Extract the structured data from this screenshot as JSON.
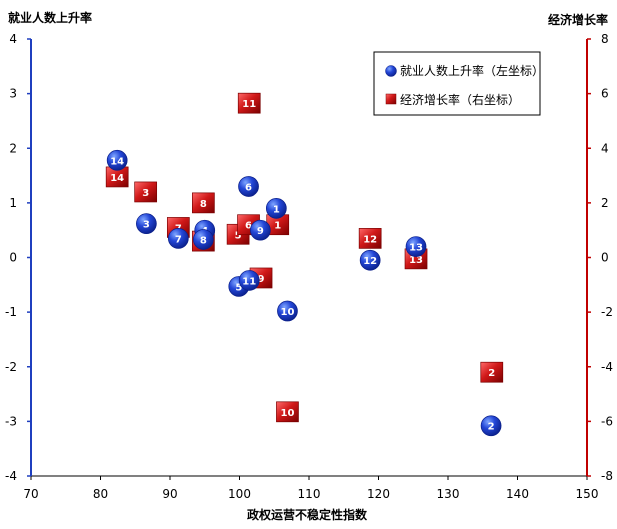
{
  "chart_data": {
    "type": "scatter",
    "title": "",
    "xlabel": "政权运营不稳定性指数",
    "ylabel_left": "就业人数上升率",
    "ylabel_right": "经济增长率",
    "xlim": [
      70,
      150
    ],
    "xticks": [
      "70",
      "80",
      "90",
      "100",
      "110",
      "120",
      "130",
      "140",
      "150"
    ],
    "ylim_left": [
      -4,
      4
    ],
    "yticks_left": [
      "-4",
      "-3",
      "-2",
      "-1",
      "0",
      "1",
      "2",
      "3",
      "4"
    ],
    "ylim_right": [
      -8,
      8
    ],
    "yticks_right": [
      "-8",
      "-6",
      "-4",
      "-2",
      "0",
      "2",
      "4",
      "6",
      "8"
    ],
    "grid": false,
    "legend_position": "top-right",
    "colors": {
      "left_axis": "#1f3fbf",
      "right_axis": "#c00000",
      "circle": "#1133cc",
      "square": "#cc1111"
    },
    "series": [
      {
        "name": "就业人数上升率（左坐标）",
        "axis": "left",
        "marker": "circle",
        "points": [
          {
            "label": "1",
            "x": 105.3,
            "y": 0.9
          },
          {
            "label": "2",
            "x": 136.2,
            "y": -3.08
          },
          {
            "label": "3",
            "x": 86.6,
            "y": 0.62
          },
          {
            "label": "4",
            "x": 95.0,
            "y": 0.5
          },
          {
            "label": "5",
            "x": 99.9,
            "y": -0.53
          },
          {
            "label": "6",
            "x": 101.3,
            "y": 1.3
          },
          {
            "label": "7",
            "x": 91.2,
            "y": 0.35
          },
          {
            "label": "8",
            "x": 94.8,
            "y": 0.33
          },
          {
            "label": "9",
            "x": 103.0,
            "y": 0.5
          },
          {
            "label": "10",
            "x": 106.9,
            "y": -0.98
          },
          {
            "label": "11",
            "x": 101.4,
            "y": -0.42
          },
          {
            "label": "12",
            "x": 118.8,
            "y": -0.05
          },
          {
            "label": "13",
            "x": 125.4,
            "y": 0.2
          },
          {
            "label": "14",
            "x": 82.4,
            "y": 1.78
          }
        ]
      },
      {
        "name": "经济增长率（右坐标）",
        "axis": "right",
        "marker": "square",
        "points": [
          {
            "label": "1",
            "x": 105.5,
            "y": 1.2
          },
          {
            "label": "2",
            "x": 136.3,
            "y": -4.2
          },
          {
            "label": "3",
            "x": 86.5,
            "y": 2.4
          },
          {
            "label": "4",
            "x": 94.8,
            "y": 0.6
          },
          {
            "label": "5",
            "x": 99.8,
            "y": 0.85
          },
          {
            "label": "6",
            "x": 101.3,
            "y": 1.2
          },
          {
            "label": "7",
            "x": 91.2,
            "y": 1.1
          },
          {
            "label": "8",
            "x": 94.8,
            "y": 2.0
          },
          {
            "label": "9",
            "x": 103.1,
            "y": -0.75
          },
          {
            "label": "10",
            "x": 106.9,
            "y": -5.65
          },
          {
            "label": "11",
            "x": 101.4,
            "y": 5.65
          },
          {
            "label": "12",
            "x": 118.8,
            "y": 0.7
          },
          {
            "label": "13",
            "x": 125.4,
            "y": -0.05
          },
          {
            "label": "14",
            "x": 82.4,
            "y": 2.95
          }
        ]
      }
    ]
  }
}
